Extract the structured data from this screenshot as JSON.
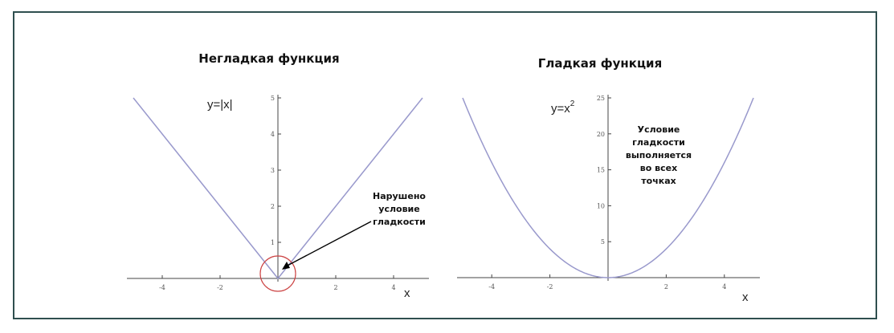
{
  "chart_data": [
    {
      "type": "line",
      "title": "Негладкая функция",
      "equation": "y=|x|",
      "xlabel": "x",
      "ylabel": "",
      "xlim": [
        -5,
        5
      ],
      "ylim": [
        0,
        5
      ],
      "x_ticks": [
        -4,
        -2,
        2,
        4
      ],
      "y_ticks": [
        1,
        2,
        3,
        4,
        5
      ],
      "line_color": "#9999cc",
      "highlight_color": "#cc4444",
      "series": [
        {
          "x": [
            -5,
            -4,
            -3,
            -2,
            -1,
            0,
            1,
            2,
            3,
            4,
            5
          ],
          "y": [
            5,
            4,
            3,
            2,
            1,
            0,
            1,
            2,
            3,
            4,
            5
          ]
        }
      ],
      "annotation": {
        "lines": [
          "Нарушено",
          "условие",
          "гладкости"
        ],
        "target": [
          0,
          0
        ]
      }
    },
    {
      "type": "line",
      "title": "Гладкая функция",
      "equation_base": "y=x",
      "equation_sup": "2",
      "xlabel": "x",
      "ylabel": "",
      "xlim": [
        -5,
        5
      ],
      "ylim": [
        0,
        25
      ],
      "x_ticks": [
        -4,
        -2,
        2,
        4
      ],
      "y_ticks": [
        5,
        10,
        15,
        20,
        25
      ],
      "line_color": "#9999cc",
      "series": [
        {
          "x": [
            -5,
            -4,
            -3,
            -2,
            -1,
            0,
            1,
            2,
            3,
            4,
            5
          ],
          "y": [
            25,
            16,
            9,
            4,
            1,
            0,
            1,
            4,
            9,
            16,
            25
          ]
        }
      ],
      "annotation": {
        "lines": [
          "Условие",
          "гладкости",
          "выполняется",
          "во всех",
          "точках"
        ]
      }
    }
  ]
}
